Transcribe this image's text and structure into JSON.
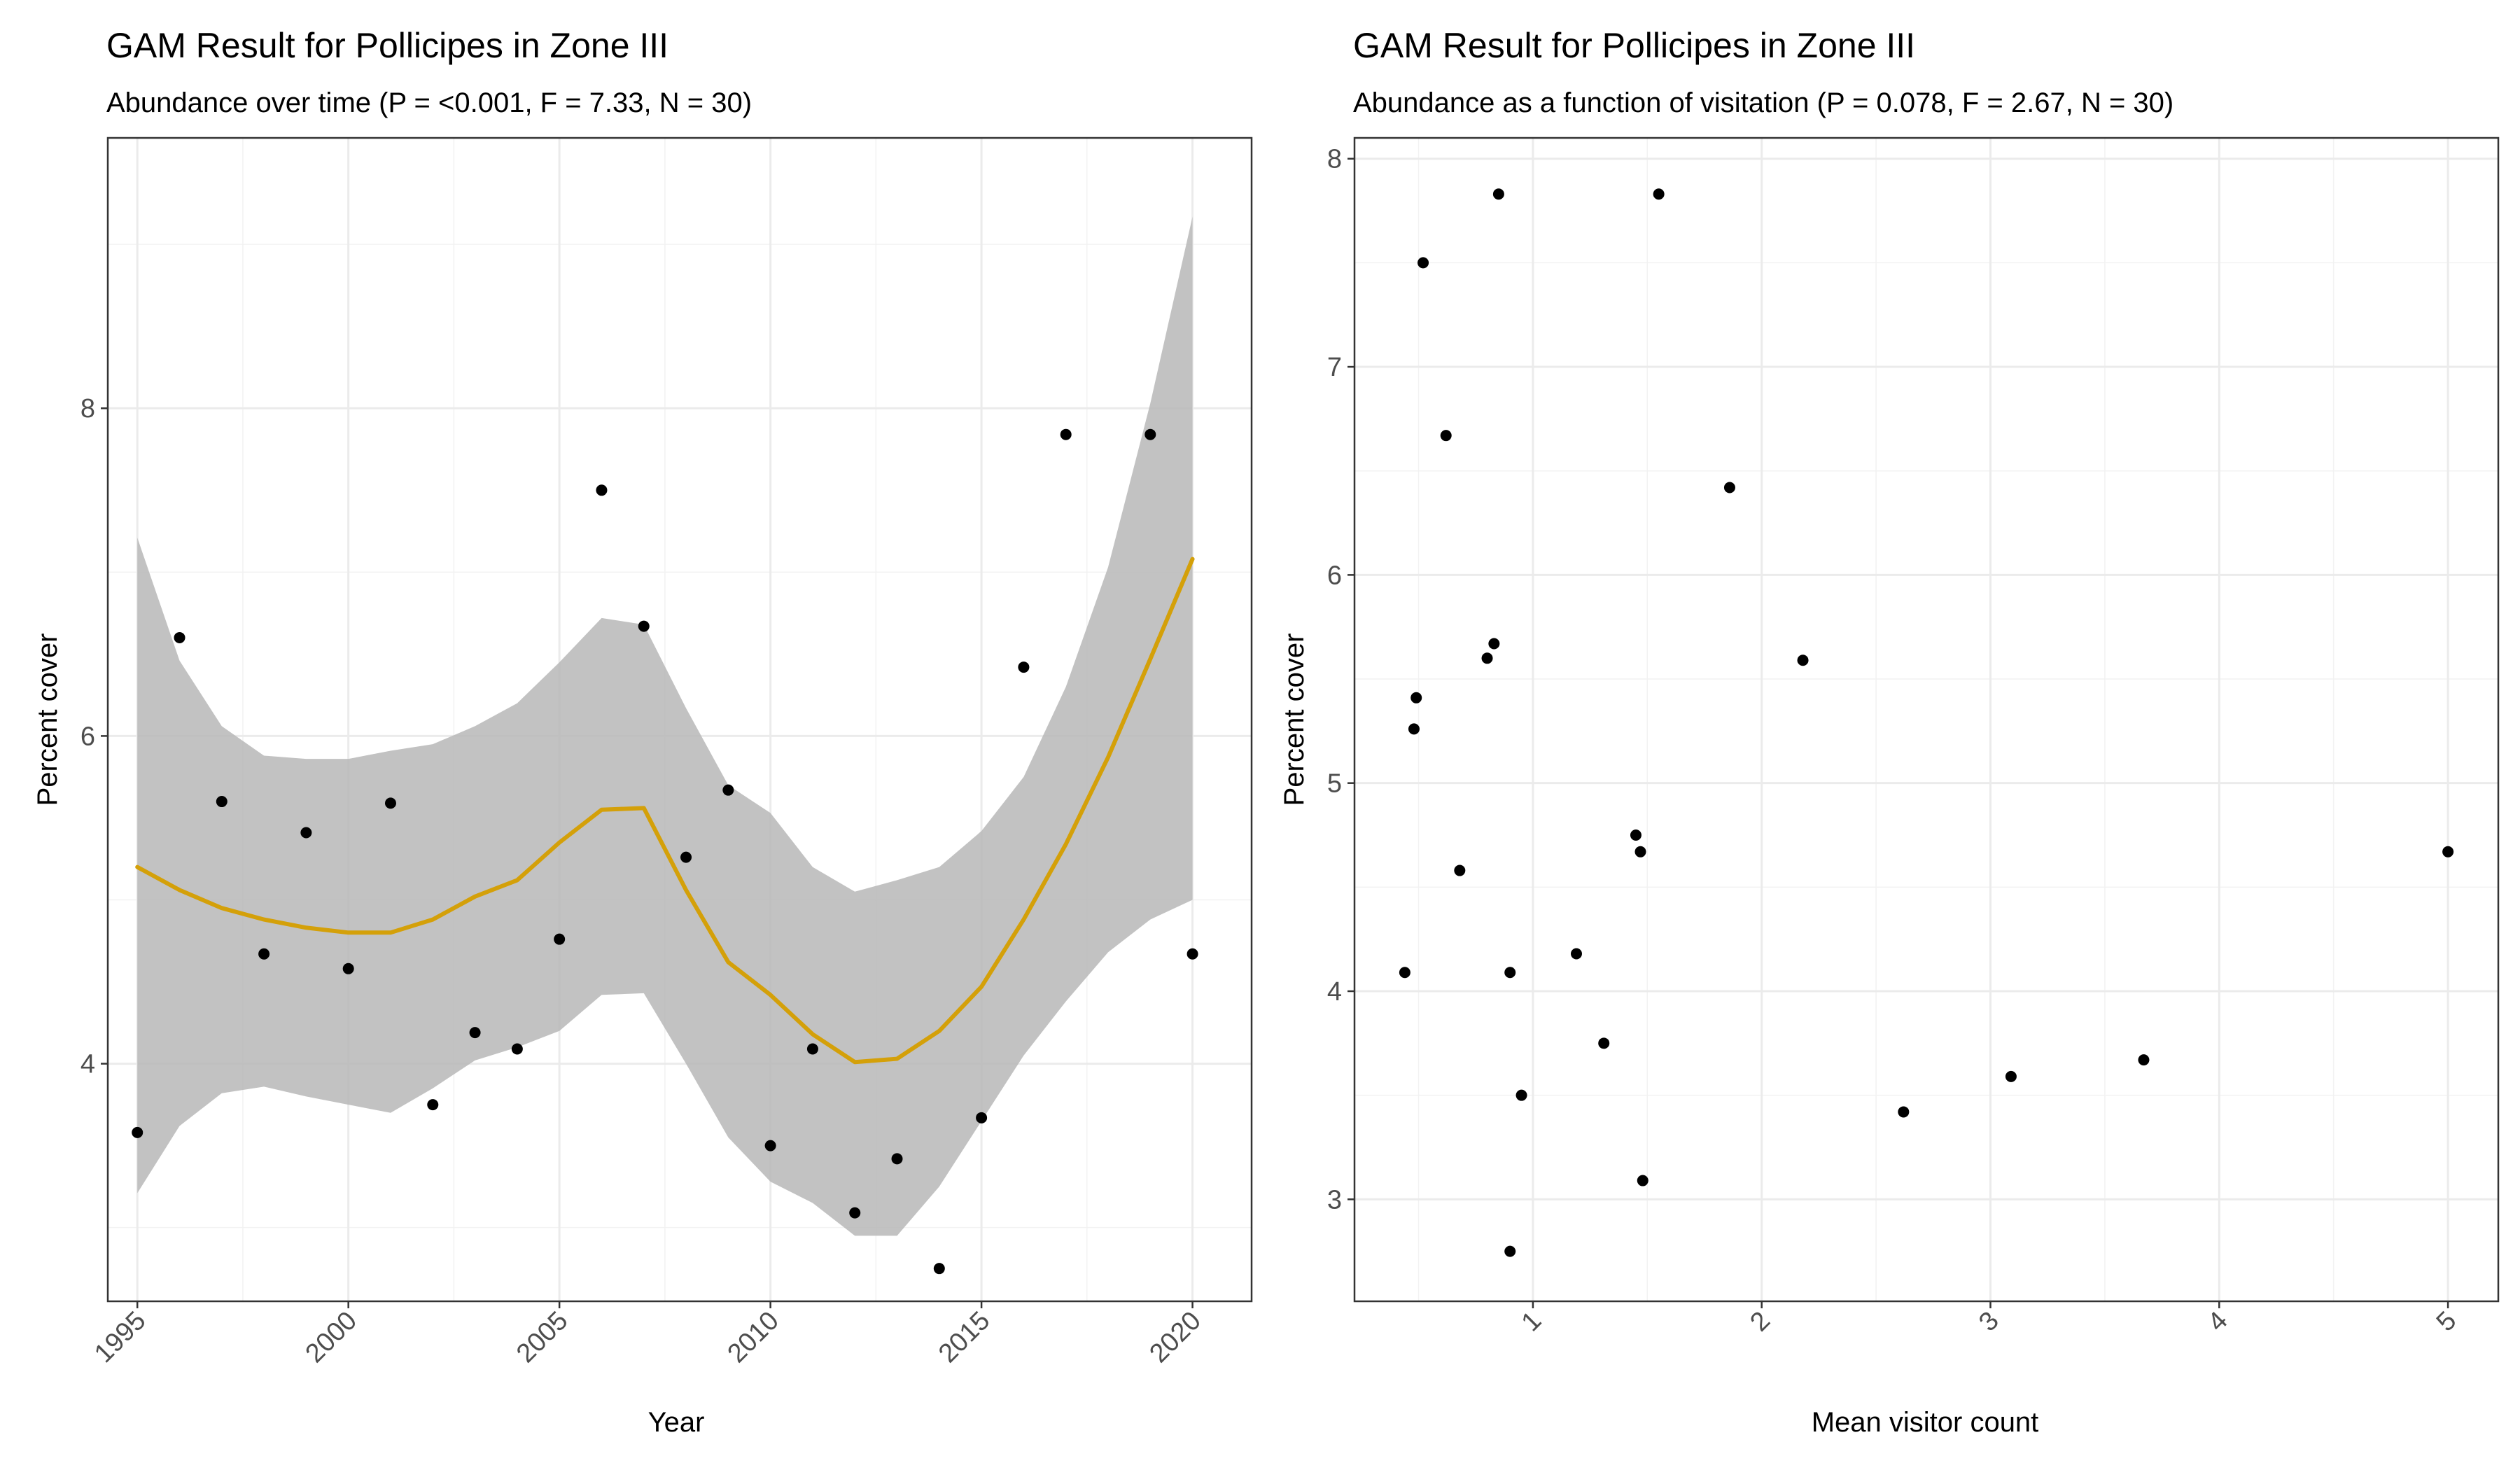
{
  "chart_data": [
    {
      "type": "scatter",
      "title": "GAM Result for Pollicipes in Zone III",
      "subtitle": "Abundance over time (P = <0.001, F = 7.33, N = 30)",
      "xlabel": "Year",
      "ylabel": "Percent cover",
      "xlim": [
        1994.3,
        2021.4
      ],
      "ylim": [
        2.55,
        9.65
      ],
      "xticks": [
        1995,
        2000,
        2005,
        2010,
        2015,
        2020
      ],
      "xtick_labels": [
        "1995",
        "2000",
        "2005",
        "2010",
        "2015",
        "2020"
      ],
      "yticks": [
        4,
        6,
        8
      ],
      "ytick_labels": [
        "4",
        "6",
        "8"
      ],
      "grid": true,
      "points": {
        "x": [
          1995,
          1996,
          1997,
          1998,
          1999,
          2000,
          2001,
          2002,
          2003,
          2004,
          2005,
          2006,
          2007,
          2008,
          2009,
          2010,
          2011,
          2012,
          2013,
          2014,
          2015,
          2016,
          2017,
          2019,
          2020
        ],
        "y": [
          3.58,
          6.6,
          5.6,
          4.67,
          5.41,
          4.58,
          5.59,
          3.75,
          4.19,
          4.09,
          4.76,
          7.5,
          6.67,
          5.26,
          5.67,
          3.5,
          4.09,
          3.09,
          3.42,
          2.75,
          3.67,
          6.42,
          7.84,
          7.84,
          4.67
        ]
      },
      "smooth": {
        "color": "#d4a009",
        "x": [
          1995,
          1996,
          1997,
          1998,
          1999,
          2000,
          2001,
          2002,
          2003,
          2004,
          2005,
          2006,
          2007,
          2008,
          2009,
          2010,
          2011,
          2012,
          2013,
          2014,
          2015,
          2016,
          2017,
          2018,
          2019,
          2020
        ],
        "y": [
          5.2,
          5.06,
          4.95,
          4.88,
          4.83,
          4.8,
          4.8,
          4.88,
          5.02,
          5.12,
          5.35,
          5.55,
          5.56,
          5.06,
          4.62,
          4.42,
          4.18,
          4.01,
          4.03,
          4.2,
          4.47,
          4.88,
          5.34,
          5.87,
          6.47,
          7.08
        ],
        "lower": [
          3.21,
          3.62,
          3.82,
          3.86,
          3.8,
          3.75,
          3.7,
          3.85,
          4.02,
          4.1,
          4.2,
          4.42,
          4.43,
          4.0,
          3.55,
          3.28,
          3.15,
          2.95,
          2.95,
          3.25,
          3.65,
          4.05,
          4.38,
          4.68,
          4.88,
          5.0
        ],
        "upper": [
          7.21,
          6.46,
          6.06,
          5.88,
          5.86,
          5.86,
          5.91,
          5.95,
          6.06,
          6.2,
          6.45,
          6.72,
          6.68,
          6.17,
          5.7,
          5.53,
          5.2,
          5.05,
          5.12,
          5.2,
          5.42,
          5.75,
          6.3,
          7.03,
          8.03,
          9.17
        ]
      }
    },
    {
      "type": "scatter",
      "title": "GAM Result for Pollicipes in Zone III",
      "subtitle": "Abundance as a function of visitation (P = 0.078, F = 2.67, N = 30)",
      "xlabel": "Mean visitor count",
      "ylabel": "Percent cover",
      "xlim": [
        0.22,
        5.22
      ],
      "ylim": [
        2.51,
        8.1
      ],
      "xticks": [
        1,
        2,
        3,
        4,
        5
      ],
      "xtick_labels": [
        "1",
        "2",
        "3",
        "4",
        "5"
      ],
      "yticks": [
        3,
        4,
        5,
        6,
        7,
        8
      ],
      "ytick_labels": [
        "3",
        "4",
        "5",
        "6",
        "7",
        "8"
      ],
      "grid": true,
      "points": {
        "x": [
          0.85,
          1.55,
          0.52,
          0.62,
          1.86,
          0.83,
          0.8,
          2.18,
          0.49,
          0.48,
          1.45,
          1.47,
          0.68,
          1.19,
          0.44,
          0.9,
          1.31,
          0.95,
          2.62,
          3.09,
          3.67,
          5.0,
          1.48,
          0.9
        ],
        "y": [
          7.83,
          7.83,
          7.5,
          6.67,
          6.42,
          5.67,
          5.6,
          5.59,
          5.41,
          5.26,
          4.75,
          4.67,
          4.58,
          4.18,
          4.09,
          4.09,
          3.75,
          3.5,
          3.42,
          3.59,
          3.67,
          4.67,
          3.09,
          2.75
        ]
      }
    }
  ]
}
